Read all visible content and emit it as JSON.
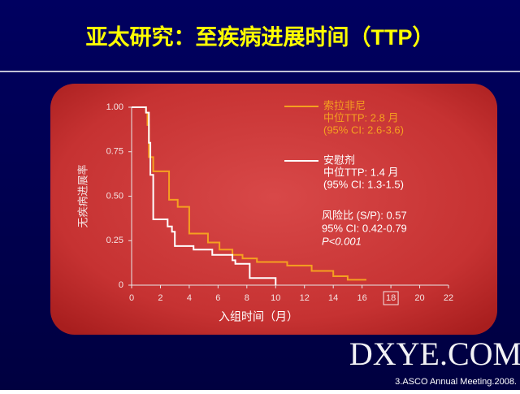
{
  "header": {
    "title": "亚太研究：至疾病进展时间（TTP）"
  },
  "chart_data": {
    "type": "step",
    "y_label": "无疾病进展率",
    "x_label": "入组时间（月）",
    "xlim": [
      0,
      22
    ],
    "xticks": [
      0,
      2,
      4,
      6,
      8,
      10,
      12,
      14,
      16,
      18,
      20,
      22
    ],
    "boxed_xticks": [
      18
    ],
    "ylim": [
      0,
      1
    ],
    "yticks": [
      0,
      0.25,
      {
        "value": 0.5,
        "label": "0.50"
      },
      0.75,
      {
        "value": 1,
        "label": "1.00"
      }
    ],
    "series": [
      {
        "name": "索拉非尼",
        "color": "#f5a020",
        "x": [
          0,
          1.0,
          1.1,
          1.2,
          1.5,
          2.6,
          3.2,
          4.0,
          5.3,
          6.1,
          7.0,
          7.7,
          8.7,
          10.8,
          12.5,
          14.0,
          15.0,
          16.3
        ],
        "values": [
          1.0,
          0.97,
          0.9,
          0.72,
          0.64,
          0.48,
          0.44,
          0.29,
          0.24,
          0.2,
          0.17,
          0.15,
          0.13,
          0.11,
          0.08,
          0.05,
          0.03,
          0.03
        ],
        "notes": [
          "中位TTP: 2.8 月",
          "(95% CI: 2.6-3.6)"
        ]
      },
      {
        "name": "安慰剂",
        "color": "#ffffff",
        "x": [
          0,
          1.0,
          1.2,
          1.3,
          1.5,
          2.5,
          2.8,
          3.0,
          4.3,
          5.6,
          7.0,
          7.2,
          8.2,
          10.0
        ],
        "values": [
          1.0,
          0.97,
          0.8,
          0.62,
          0.37,
          0.33,
          0.3,
          0.22,
          0.2,
          0.17,
          0.14,
          0.12,
          0.04,
          0.0
        ],
        "notes": [
          "中位TTP: 1.4 月",
          "(95% CI: 1.3-1.5)"
        ]
      }
    ],
    "annotations": [
      "风险比 (S/P): 0.57",
      "95% CI: 0.42-0.79",
      "P<0.001"
    ]
  },
  "footer": {
    "watermark": "DXYE.COM",
    "source": "3.ASCO Annual Meeting.2008."
  }
}
